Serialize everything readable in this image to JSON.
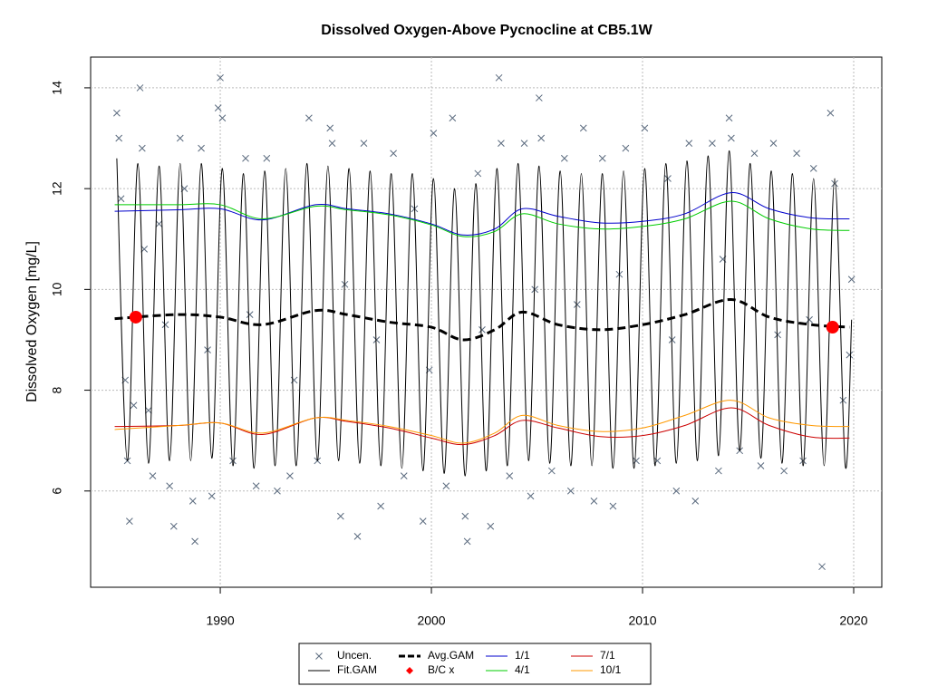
{
  "chart_data": {
    "type": "line",
    "title": "Dissolved Oxygen-Above Pycnocline at CB5.1W",
    "y_label": "Dissolved Oxygen [mg/L]",
    "xlim": [
      1983.86,
      2021.33
    ],
    "xticks": [
      1990,
      2000,
      2010,
      2020
    ],
    "ylim": [
      4.09,
      14.61
    ],
    "yticks": [
      6,
      8,
      10,
      12,
      14
    ],
    "grid": true,
    "legend": "bottom",
    "series": [
      {
        "name": "Uncen.",
        "color": "#5a6a7e",
        "kind": "points",
        "x": [
          1985.1,
          1985.2,
          1985.3,
          1985.5,
          1985.6,
          1985.7,
          1985.9,
          1986.2,
          1986.3,
          1986.6,
          1986.8,
          1987.1,
          1987.6,
          1987.8,
          1988.1,
          1988.3,
          1988.7,
          1988.8,
          1989.1,
          1989.6,
          1989.9,
          1990.0,
          1990.1,
          1990.6,
          1991.2,
          1991.7,
          1992.2,
          1992.7,
          1993.3,
          1994.2,
          1994.6,
          1995.2,
          1995.3,
          1995.7,
          1996.5,
          1996.8,
          1997.6,
          1998.2,
          1998.7,
          1999.2,
          1999.6,
          2000.1,
          2000.7,
          2001.0,
          2001.6,
          2001.7,
          2002.2,
          2002.8,
          2003.2,
          2003.3,
          2003.7,
          2004.4,
          2004.7,
          2005.1,
          2005.2,
          2005.7,
          2006.3,
          2006.6,
          2007.2,
          2007.7,
          2008.1,
          2008.6,
          2009.2,
          2009.7,
          2010.1,
          2010.7,
          2011.2,
          2011.6,
          2012.2,
          2012.5,
          2013.3,
          2013.6,
          2014.1,
          2014.2,
          2014.6,
          2015.3,
          2015.6,
          2016.2,
          2016.7,
          2017.3,
          2017.6,
          2018.1,
          2018.5,
          2018.9,
          2019.1,
          2019.5,
          2019.9,
          2019.8,
          1986.4,
          1987.4,
          1989.4,
          1991.4,
          1993.5,
          1995.9,
          1997.4,
          1999.9,
          2002.4,
          2004.9,
          2006.9,
          2008.9,
          2011.4,
          2013.8,
          2016.4,
          2017.9
        ],
        "values": [
          13.5,
          13.0,
          11.8,
          8.2,
          6.6,
          5.4,
          7.7,
          14.0,
          12.8,
          7.6,
          6.3,
          11.3,
          6.1,
          5.3,
          13.0,
          12.0,
          5.8,
          5.0,
          12.8,
          5.9,
          13.6,
          14.2,
          13.4,
          6.6,
          12.6,
          6.1,
          12.6,
          6.0,
          6.3,
          13.4,
          6.6,
          13.2,
          12.9,
          5.5,
          5.1,
          12.9,
          5.7,
          12.7,
          6.3,
          11.6,
          5.4,
          13.1,
          6.1,
          13.4,
          5.5,
          5.0,
          12.3,
          5.3,
          14.2,
          12.9,
          6.3,
          12.9,
          5.9,
          13.8,
          13.0,
          6.4,
          12.6,
          6.0,
          13.2,
          5.8,
          12.6,
          5.7,
          12.8,
          6.6,
          13.2,
          6.6,
          12.2,
          6.0,
          12.9,
          5.8,
          12.9,
          6.4,
          13.4,
          13.0,
          6.8,
          12.7,
          6.5,
          12.9,
          6.4,
          12.7,
          6.6,
          12.4,
          4.5,
          13.5,
          12.1,
          7.8,
          10.2,
          8.7,
          10.8,
          9.3,
          8.8,
          9.5,
          8.2,
          10.1,
          9.0,
          8.4,
          9.2,
          10.0,
          9.7,
          10.3,
          9.0,
          10.6,
          9.1,
          9.4
        ]
      },
      {
        "name": "Fit.GAM",
        "color": "#000000",
        "kind": "line",
        "x": [
          1985.1,
          1985.6,
          1986.1,
          1986.6,
          1987.1,
          1987.6,
          1988.1,
          1988.6,
          1989.1,
          1989.6,
          1990.1,
          1990.6,
          1991.1,
          1991.6,
          1992.1,
          1992.6,
          1993.1,
          1993.6,
          1994.1,
          1994.6,
          1995.1,
          1995.6,
          1996.1,
          1996.6,
          1997.1,
          1997.6,
          1998.1,
          1998.6,
          1999.1,
          1999.6,
          2000.1,
          2000.6,
          2001.1,
          2001.6,
          2002.1,
          2002.6,
          2003.1,
          2003.6,
          2004.1,
          2004.6,
          2005.1,
          2005.6,
          2006.1,
          2006.6,
          2007.1,
          2007.6,
          2008.1,
          2008.6,
          2009.1,
          2009.6,
          2010.1,
          2010.6,
          2011.1,
          2011.6,
          2012.1,
          2012.6,
          2013.1,
          2013.6,
          2014.1,
          2014.6,
          2015.1,
          2015.6,
          2016.1,
          2016.6,
          2017.1,
          2017.6,
          2018.1,
          2018.6,
          2019.1,
          2019.6,
          2019.9
        ],
        "values": [
          12.6,
          6.6,
          12.5,
          6.55,
          12.45,
          6.6,
          12.5,
          6.6,
          12.5,
          6.65,
          12.4,
          6.5,
          12.3,
          6.45,
          12.35,
          6.5,
          12.4,
          6.5,
          12.5,
          6.6,
          12.45,
          6.6,
          12.4,
          6.55,
          12.35,
          6.5,
          12.3,
          6.45,
          12.3,
          6.4,
          12.2,
          6.35,
          12.0,
          6.3,
          12.1,
          6.4,
          12.4,
          6.5,
          12.5,
          6.6,
          12.45,
          6.55,
          12.35,
          6.5,
          12.3,
          6.5,
          12.3,
          6.45,
          12.35,
          6.45,
          12.4,
          6.5,
          12.5,
          6.55,
          12.55,
          6.6,
          12.65,
          6.7,
          12.75,
          6.8,
          12.5,
          6.65,
          12.35,
          6.55,
          12.3,
          6.5,
          12.2,
          6.5,
          12.2,
          6.5,
          9.4
        ]
      },
      {
        "name": "Avg.GAM",
        "color": "#000000",
        "kind": "dashed",
        "x": [
          1985,
          1988,
          1990,
          1992,
          1994.5,
          1996,
          1998,
          2000,
          2001.5,
          2003,
          2004.3,
          2006,
          2008,
          2010,
          2012,
          2014.2,
          2016,
          2018,
          2019.8
        ],
        "values": [
          9.42,
          9.5,
          9.45,
          9.3,
          9.58,
          9.5,
          9.35,
          9.25,
          9.0,
          9.2,
          9.55,
          9.3,
          9.2,
          9.3,
          9.5,
          9.8,
          9.45,
          9.3,
          9.25
        ]
      },
      {
        "name": "B/C x",
        "color": "#ff0000",
        "kind": "dots",
        "x": [
          1986,
          2019
        ],
        "values": [
          9.45,
          9.25
        ]
      },
      {
        "name": "1/1",
        "color": "#0000cc",
        "kind": "line",
        "x": [
          1985,
          1988,
          1990,
          1992,
          1994.5,
          1996,
          1998,
          2000,
          2001.5,
          2003,
          2004.3,
          2006,
          2008,
          2010,
          2012,
          2014.2,
          2016,
          2018,
          2019.8
        ],
        "values": [
          11.55,
          11.58,
          11.6,
          11.38,
          11.68,
          11.6,
          11.5,
          11.3,
          11.08,
          11.2,
          11.6,
          11.45,
          11.32,
          11.35,
          11.5,
          11.92,
          11.6,
          11.42,
          11.4
        ]
      },
      {
        "name": "4/1",
        "color": "#00cc00",
        "kind": "line",
        "x": [
          1985,
          1988,
          1990,
          1992,
          1994.5,
          1996,
          1998,
          2000,
          2001.5,
          2003,
          2004.3,
          2006,
          2008,
          2010,
          2012,
          2014.2,
          2016,
          2018,
          2019.8
        ],
        "values": [
          11.68,
          11.68,
          11.68,
          11.4,
          11.65,
          11.58,
          11.48,
          11.28,
          11.05,
          11.15,
          11.5,
          11.3,
          11.2,
          11.25,
          11.4,
          11.75,
          11.4,
          11.2,
          11.17
        ]
      },
      {
        "name": "7/1",
        "color": "#cc0000",
        "kind": "line",
        "x": [
          1985,
          1988,
          1990,
          1992,
          1994.5,
          1996,
          1998,
          2000,
          2001.5,
          2003,
          2004.3,
          2006,
          2008,
          2010,
          2012,
          2014.2,
          2016,
          2018,
          2019.8
        ],
        "values": [
          7.28,
          7.3,
          7.35,
          7.12,
          7.45,
          7.38,
          7.25,
          7.05,
          6.92,
          7.1,
          7.4,
          7.25,
          7.08,
          7.1,
          7.3,
          7.65,
          7.3,
          7.07,
          7.05
        ]
      },
      {
        "name": "10/1",
        "color": "#ff9900",
        "kind": "line",
        "x": [
          1985,
          1988,
          1990,
          1992,
          1994.5,
          1996,
          1998,
          2000,
          2001.5,
          2003,
          2004.3,
          2006,
          2008,
          2010,
          2012,
          2014.2,
          2016,
          2018,
          2019.8
        ],
        "values": [
          7.22,
          7.3,
          7.35,
          7.15,
          7.45,
          7.4,
          7.28,
          7.1,
          6.95,
          7.15,
          7.5,
          7.3,
          7.18,
          7.25,
          7.5,
          7.8,
          7.45,
          7.3,
          7.28
        ]
      }
    ]
  }
}
